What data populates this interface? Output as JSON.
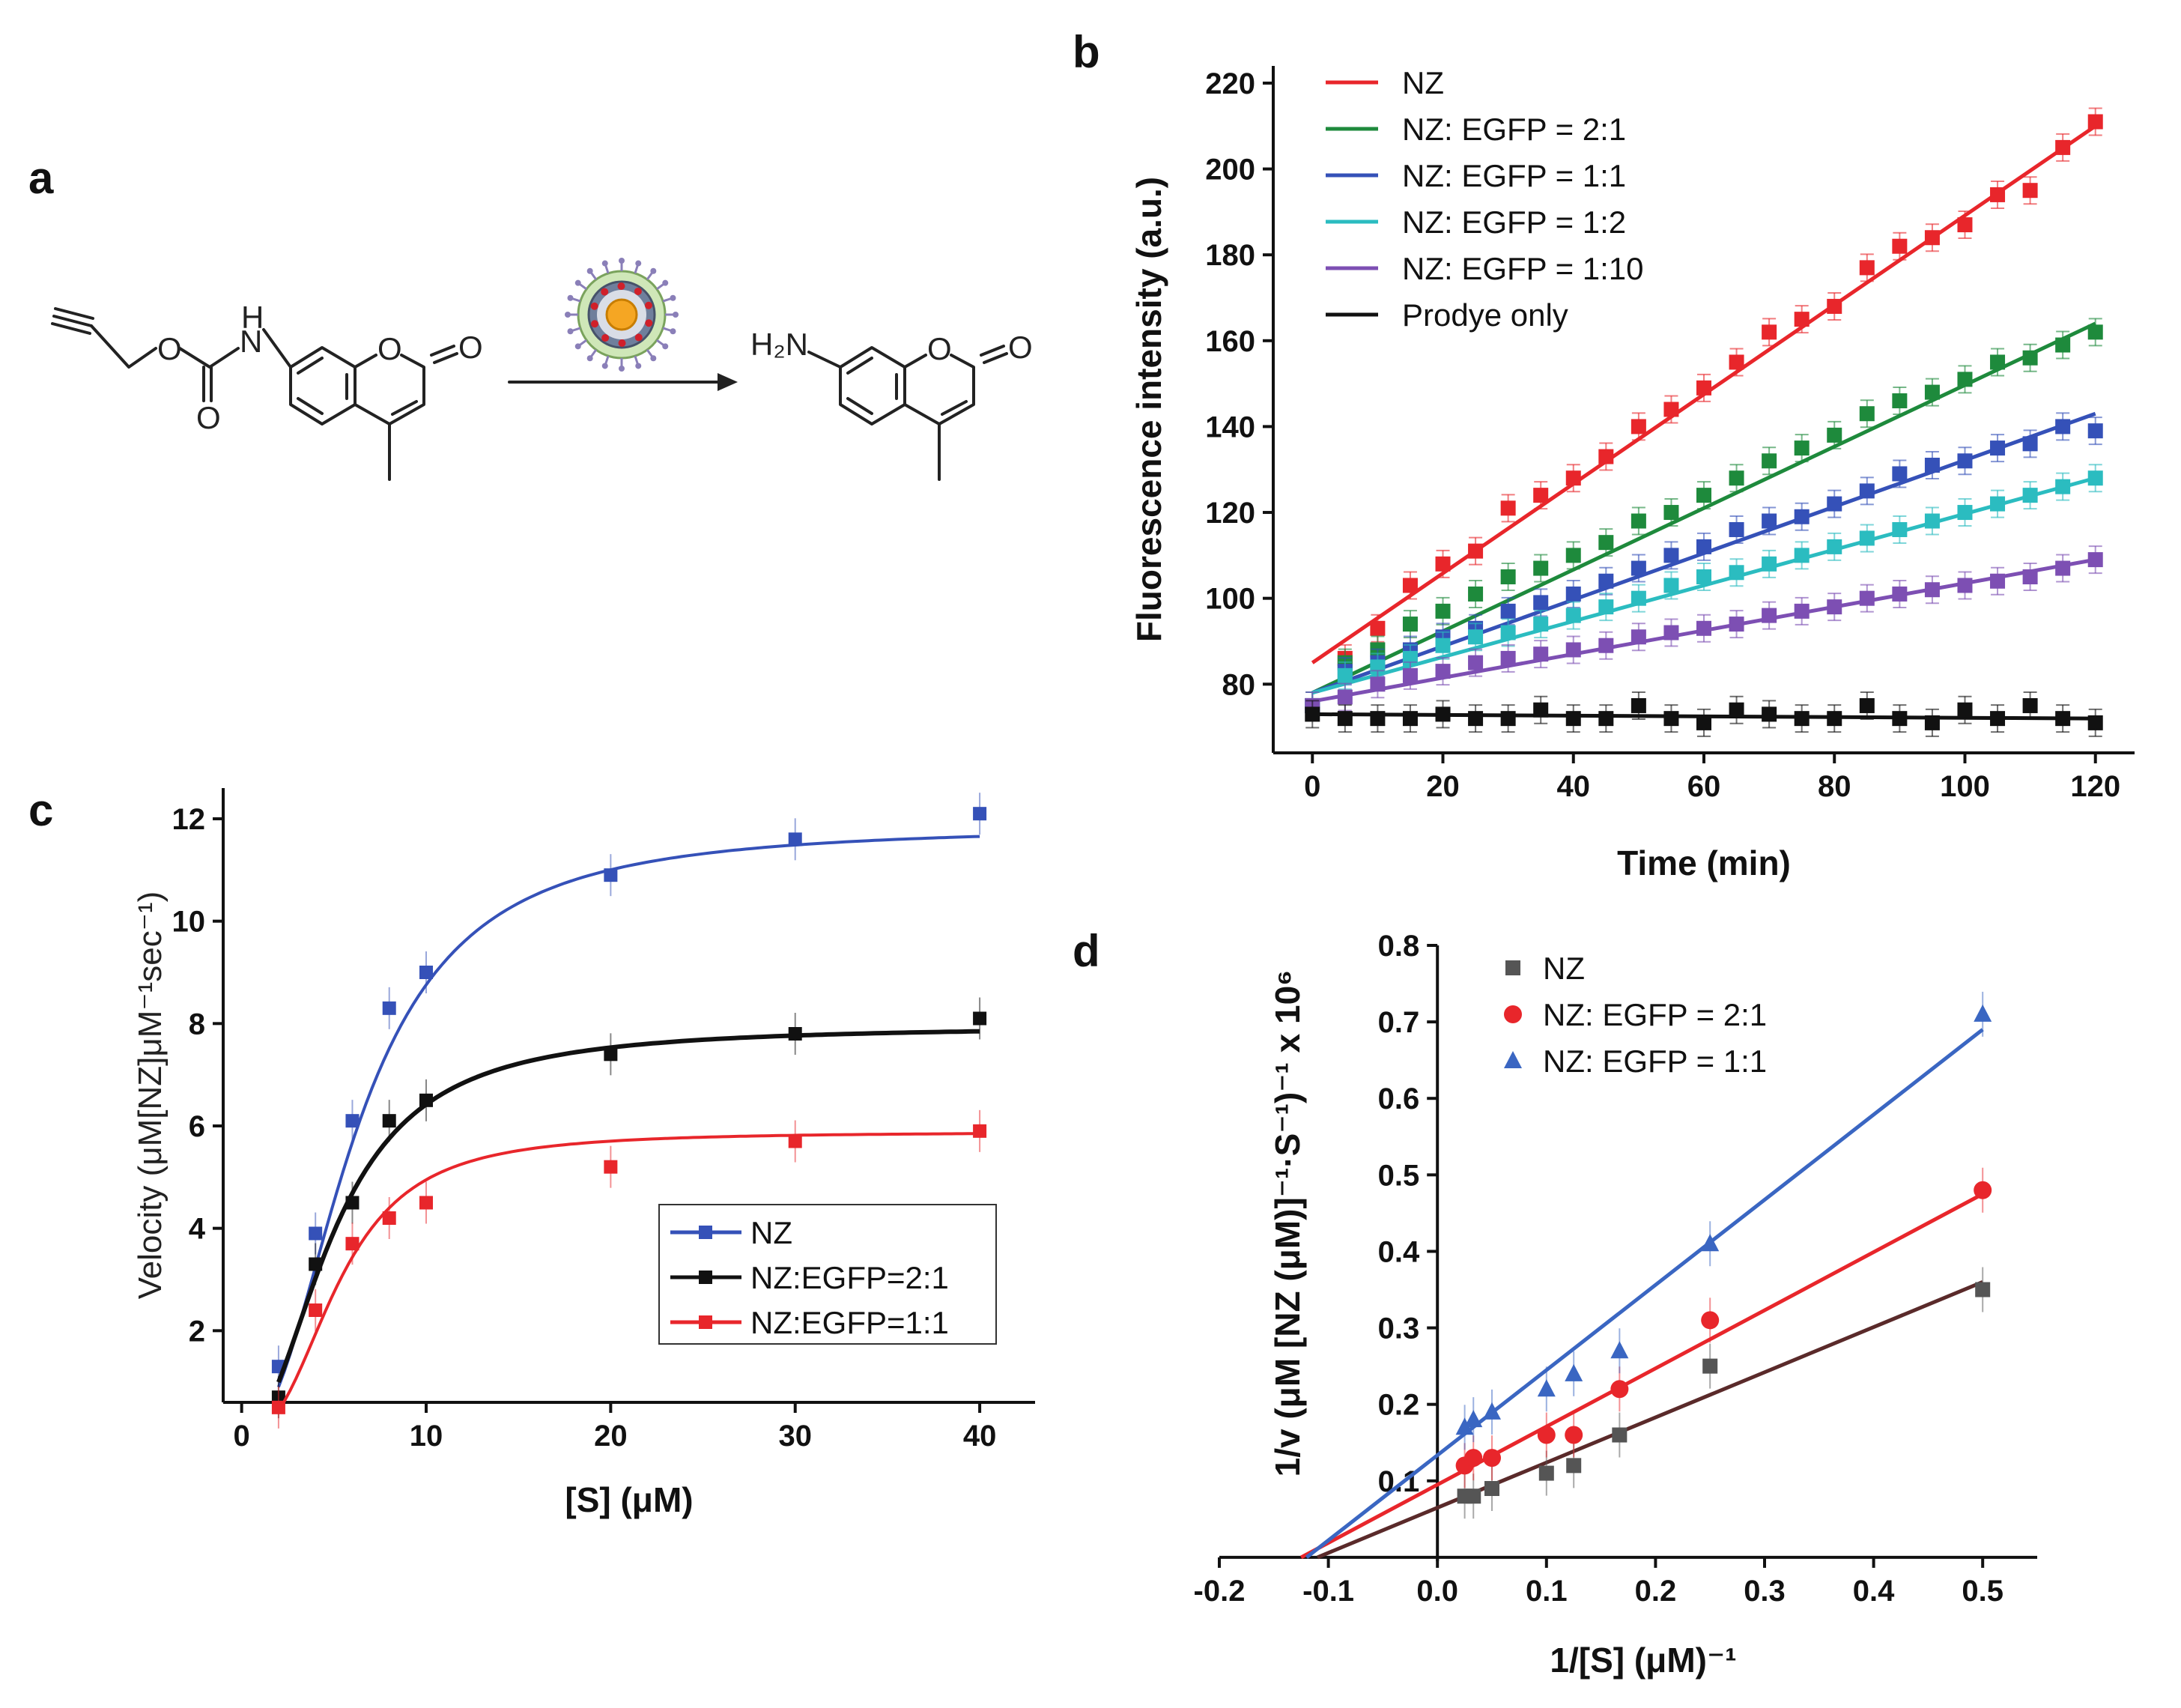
{
  "panels": {
    "a": "a",
    "b": "b",
    "c": "c",
    "d": "d"
  },
  "scheme": {
    "substrate_atoms": {
      "nh_h": "H",
      "nh_n": "N",
      "o_ester": "O",
      "o_carbonyl": "O",
      "o_ring": "O",
      "o_lactone": "O"
    },
    "product_atoms": {
      "amine": "H₂N",
      "o_ring": "O",
      "o_lactone": "O"
    },
    "catalyst_icon": "nanozyme-particle-icon"
  },
  "chart_data": [
    {
      "panel": "b",
      "type": "line",
      "title": "",
      "xlabel": "Time (min)",
      "ylabel": "Fluorescence intensity (a.u.)",
      "xlim": [
        -6,
        126
      ],
      "ylim": [
        64,
        224
      ],
      "xticks": [
        0,
        20,
        40,
        60,
        80,
        100,
        120
      ],
      "yticks": [
        80,
        100,
        120,
        140,
        160,
        180,
        200,
        220
      ],
      "legend_position": "top-left",
      "x": [
        0,
        5,
        10,
        15,
        20,
        25,
        30,
        35,
        40,
        45,
        50,
        55,
        60,
        65,
        70,
        75,
        80,
        85,
        90,
        95,
        100,
        105,
        110,
        115,
        120
      ],
      "series": [
        {
          "name": "NZ",
          "color": "#e8262b",
          "fit": [
            85,
            210
          ],
          "values": [
            75,
            86,
            93,
            103,
            108,
            111,
            121,
            124,
            128,
            133,
            140,
            144,
            149,
            155,
            162,
            165,
            168,
            177,
            182,
            184,
            187,
            194,
            195,
            205,
            211
          ]
        },
        {
          "name": "NZ: EGFP = 2:1",
          "color": "#1e8a3c",
          "fit": [
            78,
            164
          ],
          "values": [
            75,
            85,
            88,
            94,
            97,
            101,
            105,
            107,
            110,
            113,
            118,
            120,
            124,
            128,
            132,
            135,
            138,
            143,
            146,
            148,
            151,
            155,
            156,
            159,
            162
          ]
        },
        {
          "name": "NZ: EGFP = 1:1",
          "color": "#3551b8",
          "fit": [
            78,
            143
          ],
          "values": [
            75,
            83,
            85,
            88,
            91,
            93,
            97,
            99,
            101,
            104,
            107,
            110,
            112,
            116,
            118,
            119,
            122,
            125,
            129,
            131,
            132,
            135,
            136,
            140,
            139
          ]
        },
        {
          "name": "NZ: EGFP = 1:2",
          "color": "#2bbcc0",
          "fit": [
            78,
            128
          ],
          "values": [
            75,
            82,
            84,
            86,
            89,
            91,
            92,
            94,
            96,
            98,
            100,
            103,
            105,
            106,
            108,
            110,
            112,
            114,
            116,
            118,
            120,
            122,
            124,
            126,
            128
          ]
        },
        {
          "name": "NZ: EGFP = 1:10",
          "color": "#7d4fb3",
          "fit": [
            76,
            109
          ],
          "values": [
            75,
            77,
            80,
            82,
            83,
            85,
            86,
            87,
            88,
            89,
            91,
            92,
            93,
            94,
            96,
            97,
            98,
            100,
            101,
            102,
            103,
            104,
            105,
            107,
            109
          ]
        },
        {
          "name": "Prodye only",
          "color": "#111111",
          "fit": [
            73,
            72
          ],
          "values": [
            73,
            72,
            72,
            72,
            73,
            72,
            72,
            74,
            72,
            72,
            75,
            72,
            71,
            74,
            73,
            72,
            72,
            75,
            72,
            71,
            74,
            72,
            75,
            72,
            71
          ]
        }
      ]
    },
    {
      "panel": "c",
      "type": "line",
      "title": "",
      "xlabel": "[S] (μM)",
      "ylabel": "Velocity (μM[NZ]μM⁻¹sec⁻¹)",
      "xlim": [
        -1,
        43
      ],
      "ylim": [
        0.6,
        12.6
      ],
      "xticks": [
        0,
        10,
        20,
        30,
        40
      ],
      "yticks": [
        2,
        4,
        6,
        8,
        10,
        12
      ],
      "legend_position": "bottom-right",
      "x": [
        2,
        4,
        6,
        8,
        10,
        20,
        30,
        40
      ],
      "series": [
        {
          "name": "NZ",
          "color": "#3551b8",
          "values": [
            1.3,
            3.9,
            6.1,
            8.3,
            9.0,
            10.9,
            11.6,
            12.1
          ],
          "vmax": 11.85,
          "k": 56,
          "n": 2.2
        },
        {
          "name": "NZ:EGFP=2:1",
          "color": "#111111",
          "values": [
            0.7,
            3.3,
            4.5,
            6.1,
            6.5,
            7.4,
            7.8,
            8.1
          ],
          "vmax": 7.95,
          "k": 30,
          "n": 2.1
        },
        {
          "name": "NZ:EGFP=1:1",
          "color": "#e8262b",
          "values": [
            0.5,
            2.4,
            3.7,
            4.2,
            4.5,
            5.2,
            5.7,
            5.9
          ],
          "vmax": 5.88,
          "k": 75,
          "n": 2.6
        }
      ]
    },
    {
      "panel": "d",
      "type": "scatter",
      "title": "",
      "xlabel": "1/[S] (μM)⁻¹",
      "ylabel": "1/v (μM [NZ (μM)]⁻¹·S⁻¹)⁻¹ x 10⁶",
      "xlim": [
        -0.2,
        0.55
      ],
      "ylim": [
        -0.005,
        0.8
      ],
      "xticks": [
        -0.2,
        -0.1,
        0.0,
        0.1,
        0.2,
        0.3,
        0.4,
        0.5
      ],
      "yticks": [
        0.1,
        0.2,
        0.3,
        0.4,
        0.5,
        0.6,
        0.7,
        0.8
      ],
      "legend_position": "top-left",
      "x": [
        0.025,
        0.033,
        0.05,
        0.1,
        0.125,
        0.167,
        0.25,
        0.5
      ],
      "series": [
        {
          "name": "NZ",
          "color": "#555555",
          "marker": "square",
          "values": [
            0.08,
            0.08,
            0.09,
            0.11,
            0.12,
            0.16,
            0.25,
            0.35
          ],
          "fit": [
            -0.11,
            0.0,
            0.5,
            0.36
          ]
        },
        {
          "name": "NZ: EGFP = 2:1",
          "color": "#e8262b",
          "marker": "circle",
          "values": [
            0.12,
            0.13,
            0.13,
            0.16,
            0.16,
            0.22,
            0.31,
            0.48
          ],
          "fit": [
            -0.125,
            0.0,
            0.5,
            0.475
          ]
        },
        {
          "name": "NZ: EGFP = 1:1",
          "color": "#3a66c2",
          "marker": "triangle",
          "values": [
            0.17,
            0.18,
            0.19,
            0.22,
            0.24,
            0.27,
            0.41,
            0.71
          ],
          "fit": [
            -0.12,
            0.0,
            0.5,
            0.69
          ]
        }
      ]
    }
  ]
}
